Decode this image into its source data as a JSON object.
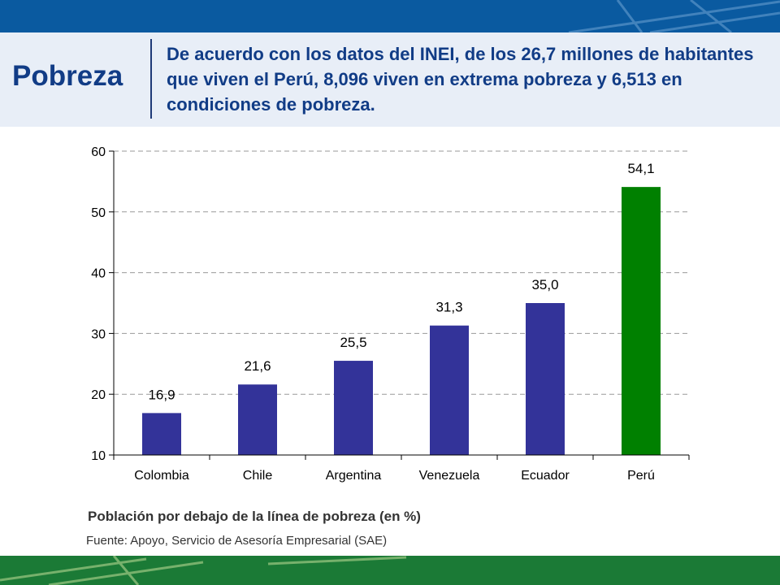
{
  "header": {
    "title": "Pobreza",
    "subtitle": "De acuerdo con los datos del INEI, de los 26,7 millones de habitantes que viven el Perú, 8,096 viven en extrema pobreza y 6,513 en condiciones de pobreza."
  },
  "chart_data": {
    "type": "bar",
    "categories": [
      "Colombia",
      "Chile",
      "Argentina",
      "Venezuela",
      "Ecuador",
      "Perú"
    ],
    "values": [
      16.9,
      21.6,
      25.5,
      31.3,
      35.0,
      54.1
    ],
    "value_labels": [
      "16,9",
      "21,6",
      "25,5",
      "31,3",
      "35,0",
      "54,1"
    ],
    "bar_colors": [
      "#333399",
      "#333399",
      "#333399",
      "#333399",
      "#333399",
      "#008000"
    ],
    "ylim": [
      10,
      60
    ],
    "yticks": [
      10,
      20,
      30,
      40,
      50,
      60
    ],
    "grid": true,
    "title": "",
    "xlabel": "",
    "ylabel": ""
  },
  "caption": "Población por debajo de la línea de pobreza (en %)",
  "source": "Fuente: Apoyo, Servicio de Asesoría Empresarial (SAE)",
  "colors": {
    "band_blue": "#0a5aa0",
    "band_green": "#1b7a36",
    "title_blue": "#113c86",
    "header_bg": "#e8eef7"
  }
}
